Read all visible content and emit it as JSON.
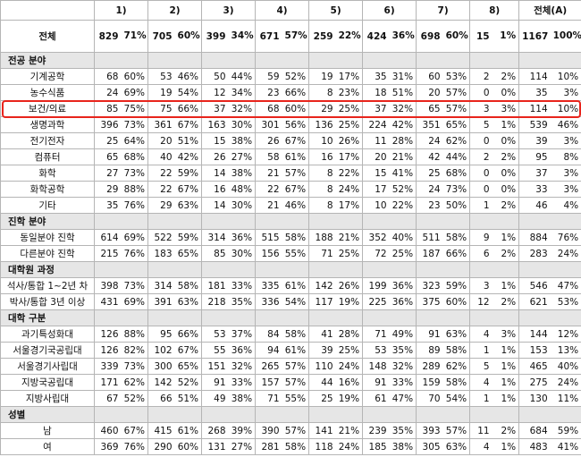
{
  "header": {
    "columns": [
      "1)",
      "2)",
      "3)",
      "4)",
      "5)",
      "6)",
      "7)",
      "8)",
      "전체(A)"
    ]
  },
  "total": {
    "label": "전체",
    "cells": [
      [
        829,
        "71%"
      ],
      [
        705,
        "60%"
      ],
      [
        399,
        "34%"
      ],
      [
        671,
        "57%"
      ],
      [
        259,
        "22%"
      ],
      [
        424,
        "36%"
      ],
      [
        698,
        "60%"
      ],
      [
        15,
        "1%"
      ],
      [
        1167,
        "100%"
      ]
    ]
  },
  "sections": [
    {
      "title": "전공 분야",
      "rows": [
        {
          "label": "기계공학",
          "cells": [
            [
              68,
              "60%"
            ],
            [
              53,
              "46%"
            ],
            [
              50,
              "44%"
            ],
            [
              59,
              "52%"
            ],
            [
              19,
              "17%"
            ],
            [
              35,
              "31%"
            ],
            [
              60,
              "53%"
            ],
            [
              2,
              "2%"
            ],
            [
              114,
              "10%"
            ]
          ]
        },
        {
          "label": "농수식품",
          "cells": [
            [
              24,
              "69%"
            ],
            [
              19,
              "54%"
            ],
            [
              12,
              "34%"
            ],
            [
              23,
              "66%"
            ],
            [
              8,
              "23%"
            ],
            [
              18,
              "51%"
            ],
            [
              20,
              "57%"
            ],
            [
              0,
              "0%"
            ],
            [
              35,
              "3%"
            ]
          ]
        },
        {
          "label": "보건/의료",
          "cells": [
            [
              85,
              "75%"
            ],
            [
              75,
              "66%"
            ],
            [
              37,
              "32%"
            ],
            [
              68,
              "60%"
            ],
            [
              29,
              "25%"
            ],
            [
              37,
              "32%"
            ],
            [
              65,
              "57%"
            ],
            [
              3,
              "3%"
            ],
            [
              114,
              "10%"
            ]
          ]
        },
        {
          "label": "생명과학",
          "cells": [
            [
              396,
              "73%"
            ],
            [
              361,
              "67%"
            ],
            [
              163,
              "30%"
            ],
            [
              301,
              "56%"
            ],
            [
              136,
              "25%"
            ],
            [
              224,
              "42%"
            ],
            [
              351,
              "65%"
            ],
            [
              5,
              "1%"
            ],
            [
              539,
              "46%"
            ]
          ]
        },
        {
          "label": "전기전자",
          "cells": [
            [
              25,
              "64%"
            ],
            [
              20,
              "51%"
            ],
            [
              15,
              "38%"
            ],
            [
              26,
              "67%"
            ],
            [
              10,
              "26%"
            ],
            [
              11,
              "28%"
            ],
            [
              24,
              "62%"
            ],
            [
              0,
              "0%"
            ],
            [
              39,
              "3%"
            ]
          ]
        },
        {
          "label": "컴퓨터",
          "cells": [
            [
              65,
              "68%"
            ],
            [
              40,
              "42%"
            ],
            [
              26,
              "27%"
            ],
            [
              58,
              "61%"
            ],
            [
              16,
              "17%"
            ],
            [
              20,
              "21%"
            ],
            [
              42,
              "44%"
            ],
            [
              2,
              "2%"
            ],
            [
              95,
              "8%"
            ]
          ]
        },
        {
          "label": "화학",
          "cells": [
            [
              27,
              "73%"
            ],
            [
              22,
              "59%"
            ],
            [
              14,
              "38%"
            ],
            [
              21,
              "57%"
            ],
            [
              8,
              "22%"
            ],
            [
              15,
              "41%"
            ],
            [
              25,
              "68%"
            ],
            [
              0,
              "0%"
            ],
            [
              37,
              "3%"
            ]
          ]
        },
        {
          "label": "화학공학",
          "cells": [
            [
              29,
              "88%"
            ],
            [
              22,
              "67%"
            ],
            [
              16,
              "48%"
            ],
            [
              22,
              "67%"
            ],
            [
              8,
              "24%"
            ],
            [
              17,
              "52%"
            ],
            [
              24,
              "73%"
            ],
            [
              0,
              "0%"
            ],
            [
              33,
              "3%"
            ]
          ]
        },
        {
          "label": "기타",
          "cells": [
            [
              35,
              "76%"
            ],
            [
              29,
              "63%"
            ],
            [
              14,
              "30%"
            ],
            [
              21,
              "46%"
            ],
            [
              8,
              "17%"
            ],
            [
              10,
              "22%"
            ],
            [
              23,
              "50%"
            ],
            [
              1,
              "2%"
            ],
            [
              46,
              "4%"
            ]
          ]
        }
      ]
    },
    {
      "title": "진학 분야",
      "rows": [
        {
          "label": "동일분야 진학",
          "cells": [
            [
              614,
              "69%"
            ],
            [
              522,
              "59%"
            ],
            [
              314,
              "36%"
            ],
            [
              515,
              "58%"
            ],
            [
              188,
              "21%"
            ],
            [
              352,
              "40%"
            ],
            [
              511,
              "58%"
            ],
            [
              9,
              "1%"
            ],
            [
              884,
              "76%"
            ]
          ]
        },
        {
          "label": "다른분야 진학",
          "cells": [
            [
              215,
              "76%"
            ],
            [
              183,
              "65%"
            ],
            [
              85,
              "30%"
            ],
            [
              156,
              "55%"
            ],
            [
              71,
              "25%"
            ],
            [
              72,
              "25%"
            ],
            [
              187,
              "66%"
            ],
            [
              6,
              "2%"
            ],
            [
              283,
              "24%"
            ]
          ]
        }
      ]
    },
    {
      "title": "대학원 과정",
      "rows": [
        {
          "label": "석사/통합 1~2년 차",
          "cells": [
            [
              398,
              "73%"
            ],
            [
              314,
              "58%"
            ],
            [
              181,
              "33%"
            ],
            [
              335,
              "61%"
            ],
            [
              142,
              "26%"
            ],
            [
              199,
              "36%"
            ],
            [
              323,
              "59%"
            ],
            [
              3,
              "1%"
            ],
            [
              546,
              "47%"
            ]
          ]
        },
        {
          "label": "박사/통합 3년 이상",
          "cells": [
            [
              431,
              "69%"
            ],
            [
              391,
              "63%"
            ],
            [
              218,
              "35%"
            ],
            [
              336,
              "54%"
            ],
            [
              117,
              "19%"
            ],
            [
              225,
              "36%"
            ],
            [
              375,
              "60%"
            ],
            [
              12,
              "2%"
            ],
            [
              621,
              "53%"
            ]
          ]
        }
      ]
    },
    {
      "title": "대학 구분",
      "rows": [
        {
          "label": "과기특성화대",
          "cells": [
            [
              126,
              "88%"
            ],
            [
              95,
              "66%"
            ],
            [
              53,
              "37%"
            ],
            [
              84,
              "58%"
            ],
            [
              41,
              "28%"
            ],
            [
              71,
              "49%"
            ],
            [
              91,
              "63%"
            ],
            [
              4,
              "3%"
            ],
            [
              144,
              "12%"
            ]
          ]
        },
        {
          "label": "서울경기국공립대",
          "cells": [
            [
              126,
              "82%"
            ],
            [
              102,
              "67%"
            ],
            [
              55,
              "36%"
            ],
            [
              94,
              "61%"
            ],
            [
              39,
              "25%"
            ],
            [
              53,
              "35%"
            ],
            [
              89,
              "58%"
            ],
            [
              1,
              "1%"
            ],
            [
              153,
              "13%"
            ]
          ]
        },
        {
          "label": "서울경기사립대",
          "cells": [
            [
              339,
              "73%"
            ],
            [
              300,
              "65%"
            ],
            [
              151,
              "32%"
            ],
            [
              265,
              "57%"
            ],
            [
              110,
              "24%"
            ],
            [
              148,
              "32%"
            ],
            [
              289,
              "62%"
            ],
            [
              5,
              "1%"
            ],
            [
              465,
              "40%"
            ]
          ]
        },
        {
          "label": "지방국공립대",
          "cells": [
            [
              171,
              "62%"
            ],
            [
              142,
              "52%"
            ],
            [
              91,
              "33%"
            ],
            [
              157,
              "57%"
            ],
            [
              44,
              "16%"
            ],
            [
              91,
              "33%"
            ],
            [
              159,
              "58%"
            ],
            [
              4,
              "1%"
            ],
            [
              275,
              "24%"
            ]
          ]
        },
        {
          "label": "지방사립대",
          "cells": [
            [
              67,
              "52%"
            ],
            [
              66,
              "51%"
            ],
            [
              49,
              "38%"
            ],
            [
              71,
              "55%"
            ],
            [
              25,
              "19%"
            ],
            [
              61,
              "47%"
            ],
            [
              70,
              "54%"
            ],
            [
              1,
              "1%"
            ],
            [
              130,
              "11%"
            ]
          ]
        }
      ]
    },
    {
      "title": "성별",
      "rows": [
        {
          "label": "남",
          "cells": [
            [
              460,
              "67%"
            ],
            [
              415,
              "61%"
            ],
            [
              268,
              "39%"
            ],
            [
              390,
              "57%"
            ],
            [
              141,
              "21%"
            ],
            [
              239,
              "35%"
            ],
            [
              393,
              "57%"
            ],
            [
              11,
              "2%"
            ],
            [
              684,
              "59%"
            ]
          ]
        },
        {
          "label": "여",
          "cells": [
            [
              369,
              "76%"
            ],
            [
              290,
              "60%"
            ],
            [
              131,
              "27%"
            ],
            [
              281,
              "58%"
            ],
            [
              118,
              "24%"
            ],
            [
              185,
              "38%"
            ],
            [
              305,
              "63%"
            ],
            [
              4,
              "1%"
            ],
            [
              483,
              "41%"
            ]
          ]
        }
      ]
    }
  ]
}
